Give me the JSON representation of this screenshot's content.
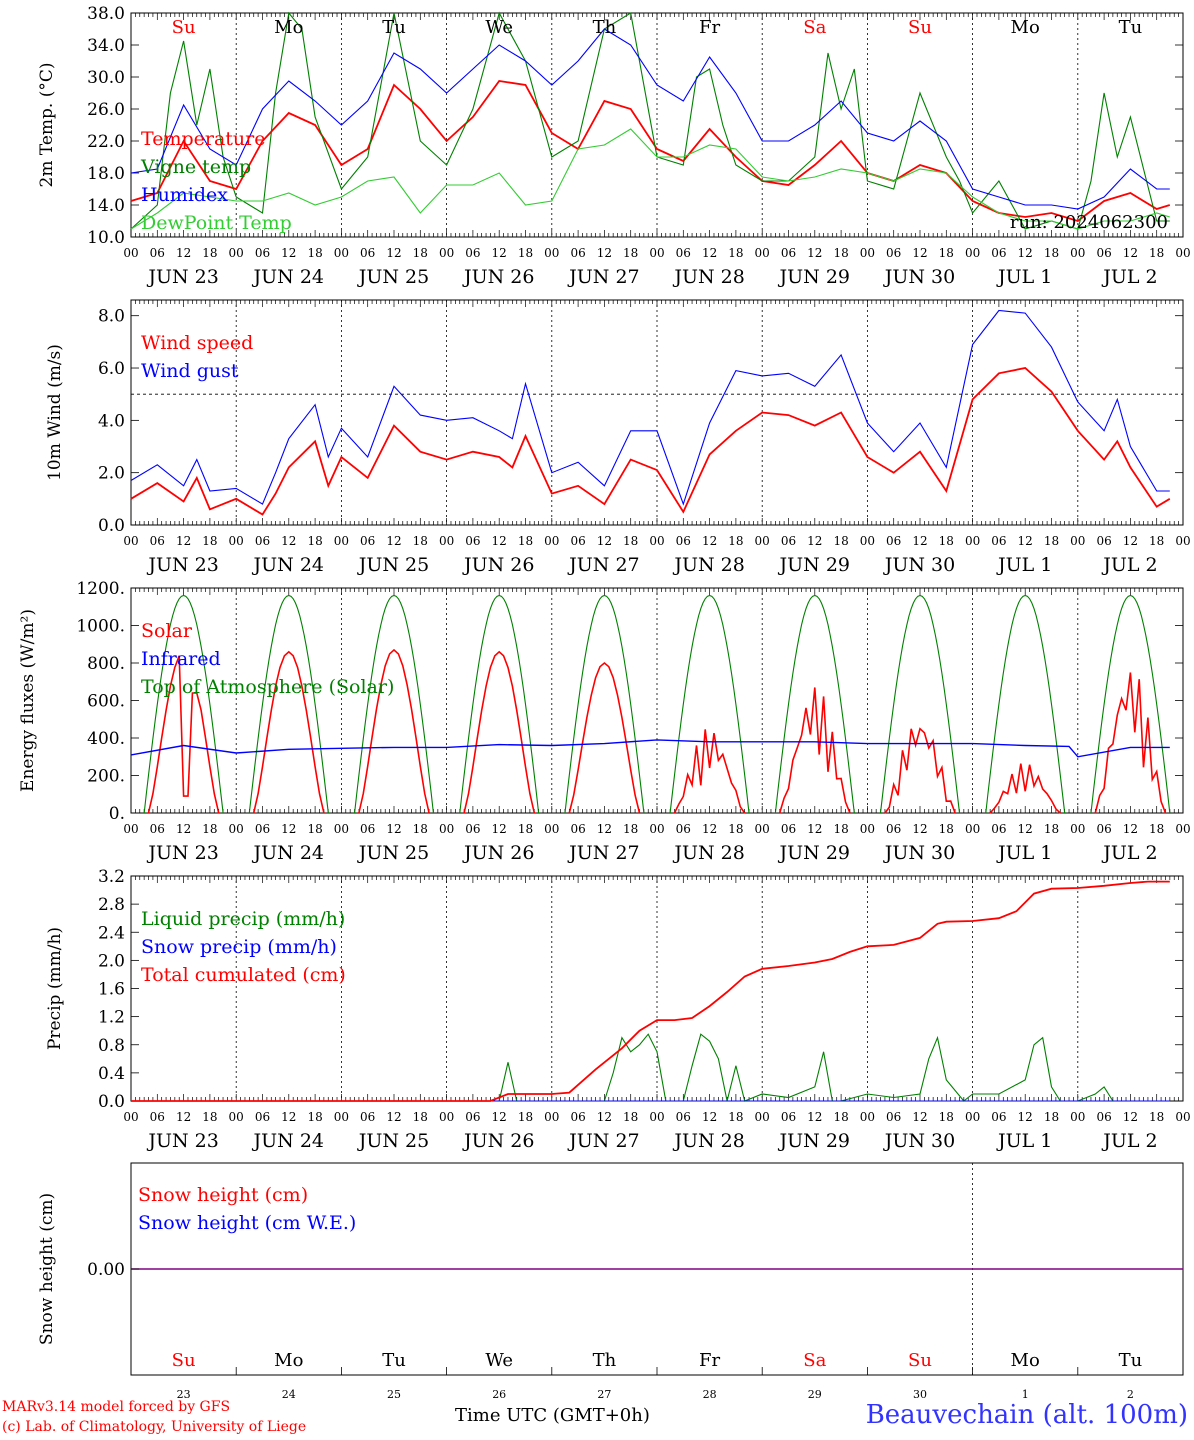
{
  "footer": {
    "model": "MARv3.14 model forced by GFS",
    "lab": "(c) Lab. of Climatology, University of Liege",
    "time_label": "Time UTC (GMT+0h)",
    "station": "Beauvechain (alt. 100m)"
  },
  "colors": {
    "red": "#ff0000",
    "blue": "#0000ff",
    "green": "#008000",
    "lightgreen": "#33cc33",
    "purple": "#800080"
  },
  "weekdays": [
    {
      "label": "Su",
      "color": "#ff0000"
    },
    {
      "label": "Mo",
      "color": "#000000"
    },
    {
      "label": "Tu",
      "color": "#000000"
    },
    {
      "label": "We",
      "color": "#000000"
    },
    {
      "label": "Th",
      "color": "#000000"
    },
    {
      "label": "Fr",
      "color": "#000000"
    },
    {
      "label": "Sa",
      "color": "#ff0000"
    },
    {
      "label": "Su",
      "color": "#ff0000"
    },
    {
      "label": "Mo",
      "color": "#000000"
    },
    {
      "label": "Tu",
      "color": "#000000"
    }
  ],
  "hour_ticks": [
    "00",
    "06",
    "12",
    "18"
  ],
  "date_labels": [
    "JUN 23",
    "JUN 24",
    "JUN 25",
    "JUN 26",
    "JUN 27",
    "JUN 28",
    "JUN 29",
    "JUN 30",
    "JUL  1",
    "JUL  2"
  ],
  "day_numbers": [
    "23",
    "24",
    "25",
    "26",
    "27",
    "28",
    "29",
    "30",
    "1",
    "2"
  ],
  "chart_data": [
    {
      "type": "line",
      "ylabel": "2m Temp. (°C)",
      "ylim": [
        10,
        38
      ],
      "yticks": [
        "10.0",
        "14.0",
        "18.0",
        "22.0",
        "26.0",
        "30.0",
        "34.0",
        "38.0"
      ],
      "run": "run: 2024062300",
      "x_unit": "hours since Jun 23 00 UTC",
      "series": [
        {
          "name": "Temperature",
          "color": "#ff0000",
          "x": [
            0,
            6,
            12,
            18,
            24,
            30,
            36,
            42,
            48,
            54,
            60,
            66,
            72,
            78,
            84,
            90,
            96,
            102,
            108,
            114,
            120,
            126,
            132,
            138,
            144,
            150,
            156,
            162,
            168,
            174,
            180,
            186,
            192,
            198,
            204,
            210,
            216,
            222,
            228,
            234,
            237
          ],
          "y": [
            14.5,
            15.5,
            22,
            17,
            16,
            22,
            25.5,
            24,
            19,
            21,
            29,
            26,
            22,
            25,
            29.5,
            29,
            23,
            21,
            27,
            26,
            21,
            19.5,
            23.5,
            20,
            17,
            16.5,
            19,
            22,
            18,
            17,
            19,
            18,
            14.5,
            13,
            12.5,
            13,
            12,
            14.5,
            15.5,
            13.5,
            14
          ]
        },
        {
          "name": "Vigne temp",
          "color": "#008000",
          "x": [
            0,
            6,
            9,
            12,
            15,
            18,
            21,
            24,
            30,
            33,
            36,
            39,
            42,
            48,
            54,
            60,
            66,
            72,
            78,
            84,
            90,
            96,
            102,
            108,
            114,
            120,
            126,
            129,
            132,
            135,
            138,
            144,
            150,
            156,
            159,
            162,
            165,
            168,
            174,
            180,
            186,
            189,
            192,
            198,
            204,
            210,
            216,
            219,
            222,
            225,
            228,
            234,
            237
          ],
          "y": [
            11,
            14,
            28,
            34.5,
            24,
            31,
            20,
            15,
            13,
            28,
            38,
            36,
            25,
            16,
            20,
            38,
            22,
            19,
            26,
            38,
            32,
            20,
            22,
            36,
            38,
            20,
            19,
            30,
            31,
            24,
            19,
            17,
            17,
            20,
            33,
            26,
            31,
            17,
            16,
            28,
            20,
            17,
            13,
            17,
            11,
            12,
            11,
            17,
            28,
            20,
            25,
            12,
            12
          ]
        },
        {
          "name": "Humidex",
          "color": "#0000ff",
          "x": [
            0,
            6,
            12,
            18,
            24,
            30,
            36,
            42,
            48,
            54,
            60,
            66,
            72,
            78,
            84,
            90,
            96,
            102,
            108,
            114,
            120,
            126,
            132,
            138,
            144,
            150,
            156,
            162,
            168,
            174,
            180,
            186,
            192,
            198,
            204,
            210,
            216,
            222,
            228,
            234,
            237
          ],
          "y": [
            18,
            18.5,
            26.5,
            21,
            19,
            26,
            29.5,
            27,
            24,
            27,
            33,
            31,
            28,
            31,
            34,
            32,
            29,
            32,
            36,
            34,
            29,
            27,
            32.5,
            28,
            22,
            22,
            24,
            27,
            23,
            22,
            24.5,
            22,
            16,
            15,
            14,
            14,
            13.5,
            15,
            18.5,
            16,
            16
          ]
        },
        {
          "name": "DewPoint Temp",
          "color": "#33cc33",
          "x": [
            0,
            6,
            12,
            18,
            24,
            30,
            36,
            42,
            48,
            54,
            60,
            66,
            72,
            78,
            84,
            90,
            96,
            102,
            108,
            114,
            120,
            126,
            132,
            138,
            144,
            150,
            156,
            162,
            168,
            174,
            180,
            186,
            192,
            198,
            204,
            210,
            216,
            222,
            228,
            234,
            237
          ],
          "y": [
            11,
            13,
            15.5,
            15,
            14.5,
            14.5,
            15.5,
            14,
            15,
            17,
            17.5,
            13,
            16.5,
            16.5,
            18,
            14,
            14.5,
            21,
            21.5,
            23.5,
            20,
            20,
            21.5,
            21,
            17.5,
            17,
            17.5,
            18.5,
            18,
            17,
            18.5,
            18,
            15,
            13,
            12,
            12,
            11,
            12,
            12,
            13,
            12.5
          ]
        }
      ]
    },
    {
      "type": "line",
      "ylabel": "10m Wind (m/s)",
      "ylim": [
        0,
        8.6
      ],
      "yticks": [
        "0.0",
        "2.0",
        "4.0",
        "6.0",
        "8.0"
      ],
      "ref_line": 5,
      "series": [
        {
          "name": "Wind speed",
          "color": "#ff0000",
          "x": [
            0,
            6,
            12,
            15,
            18,
            24,
            30,
            33,
            36,
            42,
            45,
            48,
            54,
            60,
            66,
            72,
            78,
            84,
            87,
            90,
            96,
            102,
            108,
            114,
            120,
            126,
            132,
            138,
            144,
            150,
            156,
            162,
            168,
            174,
            180,
            186,
            192,
            198,
            204,
            210,
            216,
            222,
            225,
            228,
            234,
            237
          ],
          "y": [
            1.0,
            1.6,
            0.9,
            1.8,
            0.6,
            1.0,
            0.4,
            1.2,
            2.2,
            3.2,
            1.5,
            2.6,
            1.8,
            3.8,
            2.8,
            2.5,
            2.8,
            2.6,
            2.2,
            3.4,
            1.2,
            1.5,
            0.8,
            2.5,
            2.1,
            0.5,
            2.7,
            3.6,
            4.3,
            4.2,
            3.8,
            4.3,
            2.6,
            2.0,
            2.8,
            1.3,
            4.8,
            5.8,
            6.0,
            5.1,
            3.6,
            2.5,
            3.2,
            2.2,
            0.7,
            1.0
          ]
        },
        {
          "name": "Wind gust",
          "color": "#0000ff",
          "x": [
            0,
            6,
            12,
            15,
            18,
            24,
            30,
            33,
            36,
            42,
            45,
            48,
            54,
            60,
            66,
            72,
            78,
            84,
            87,
            90,
            96,
            102,
            108,
            114,
            120,
            126,
            132,
            138,
            144,
            150,
            156,
            162,
            168,
            174,
            180,
            186,
            192,
            198,
            204,
            210,
            216,
            222,
            225,
            228,
            234,
            237
          ],
          "y": [
            1.7,
            2.3,
            1.5,
            2.5,
            1.3,
            1.4,
            0.8,
            2.0,
            3.3,
            4.6,
            2.6,
            3.7,
            2.6,
            5.3,
            4.2,
            4.0,
            4.1,
            3.6,
            3.3,
            5.4,
            2.0,
            2.4,
            1.5,
            3.6,
            3.6,
            0.8,
            3.9,
            5.9,
            5.7,
            5.8,
            5.3,
            6.5,
            3.9,
            2.8,
            3.9,
            2.2,
            6.9,
            8.2,
            8.1,
            6.8,
            4.7,
            3.6,
            4.8,
            3.0,
            1.3,
            1.3
          ]
        }
      ]
    },
    {
      "type": "line",
      "ylabel": "Energy fluxes (W/m²)",
      "ylim": [
        0,
        1200
      ],
      "yticks": [
        "0.",
        "200.",
        "400.",
        "600.",
        "800.",
        "1000.",
        "1200."
      ],
      "series": [
        {
          "name": "Solar",
          "color": "#ff0000",
          "peaks": [
            {
              "day": 0,
              "peak": 860,
              "dips": [
                [
                  12.5,
                  90
                ],
                [
                  14.5,
                  640
                ]
              ]
            },
            {
              "day": 1,
              "peak": 860
            },
            {
              "day": 2,
              "peak": 870
            },
            {
              "day": 3,
              "peak": 860
            },
            {
              "day": 4,
              "peak": 800
            },
            {
              "day": 5,
              "peak": 460,
              "spiky": true
            },
            {
              "day": 6,
              "peak": 690,
              "spiky": true
            },
            {
              "day": 7,
              "peak": 530,
              "spiky": true
            },
            {
              "day": 8,
              "peak": 270,
              "spiky": true
            },
            {
              "day": 9,
              "peak": 800,
              "spiky": true
            }
          ]
        },
        {
          "name": "Infrared",
          "color": "#0000ff",
          "x": [
            0,
            12,
            24,
            36,
            48,
            60,
            72,
            84,
            96,
            108,
            120,
            132,
            144,
            156,
            168,
            180,
            192,
            204,
            214,
            216,
            228,
            237
          ],
          "y": [
            310,
            360,
            320,
            340,
            345,
            350,
            350,
            365,
            360,
            370,
            390,
            380,
            380,
            380,
            370,
            370,
            370,
            360,
            355,
            300,
            350,
            350
          ]
        },
        {
          "name": "Top of Atmosphere (Solar)",
          "color": "#008000",
          "peak": 1160
        }
      ]
    },
    {
      "type": "line",
      "ylabel": "Precip (mm/h)",
      "ylim": [
        0,
        3.2
      ],
      "yticks": [
        "0.0",
        "0.4",
        "0.8",
        "1.2",
        "1.6",
        "2.0",
        "2.4",
        "2.8",
        "3.2"
      ],
      "series": [
        {
          "name": "Liquid precip (mm/h)",
          "color": "#008000",
          "x": [
            0,
            84,
            86,
            88,
            90,
            96,
            108,
            110,
            112,
            114,
            116,
            118,
            120,
            122,
            124,
            126,
            128,
            130,
            132,
            134,
            136,
            138,
            140,
            144,
            150,
            156,
            158,
            160,
            162,
            168,
            174,
            180,
            182,
            184,
            186,
            190,
            192,
            198,
            204,
            206,
            208,
            210,
            212,
            216,
            220,
            222,
            224,
            237
          ],
          "y": [
            0,
            0,
            0.55,
            0,
            0,
            0,
            0,
            0.4,
            0.9,
            0.7,
            0.8,
            0.95,
            0.7,
            0,
            0,
            0,
            0.5,
            0.95,
            0.85,
            0.6,
            0,
            0.5,
            0,
            0.1,
            0.05,
            0.2,
            0.7,
            0,
            0,
            0.1,
            0.05,
            0.1,
            0.6,
            0.9,
            0.3,
            0,
            0.1,
            0.1,
            0.3,
            0.8,
            0.9,
            0.2,
            0,
            0,
            0.1,
            0.2,
            0,
            0
          ]
        },
        {
          "name": "Snow precip (mm/h)",
          "color": "#0000ff",
          "x": [
            0,
            237
          ],
          "y": [
            0,
            0
          ]
        },
        {
          "name": "Total cumulated (cm)",
          "color": "#ff0000",
          "x": [
            0,
            82,
            86,
            96,
            100,
            106,
            112,
            116,
            120,
            124,
            128,
            132,
            136,
            140,
            144,
            150,
            156,
            160,
            164,
            168,
            174,
            180,
            184,
            186,
            192,
            198,
            202,
            206,
            210,
            216,
            222,
            228,
            232,
            237
          ],
          "y": [
            0,
            0,
            0.1,
            0.1,
            0.12,
            0.45,
            0.75,
            1.0,
            1.15,
            1.15,
            1.18,
            1.35,
            1.55,
            1.77,
            1.88,
            1.92,
            1.97,
            2.02,
            2.12,
            2.2,
            2.22,
            2.32,
            2.52,
            2.55,
            2.56,
            2.6,
            2.7,
            2.95,
            3.02,
            3.03,
            3.06,
            3.1,
            3.12,
            3.12
          ]
        }
      ]
    },
    {
      "type": "line",
      "ylabel": "Snow height (cm)",
      "ytick": "0.00",
      "series": [
        {
          "name": "Snow height (cm)",
          "color": "#ff0000",
          "x": [
            0,
            237
          ],
          "y": [
            0,
            0
          ]
        },
        {
          "name": "Snow height (cm W.E.)",
          "color": "#0000ff",
          "x": [
            0,
            237
          ],
          "y": [
            0,
            0
          ]
        }
      ]
    }
  ]
}
